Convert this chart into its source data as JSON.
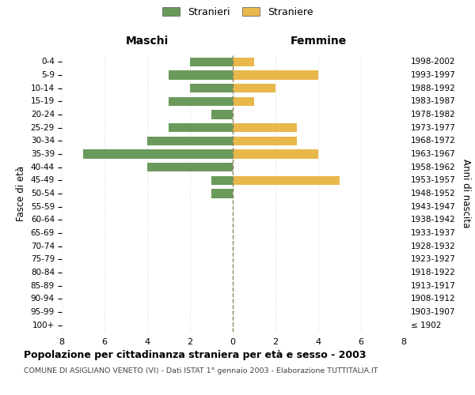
{
  "age_groups": [
    "100+",
    "95-99",
    "90-94",
    "85-89",
    "80-84",
    "75-79",
    "70-74",
    "65-69",
    "60-64",
    "55-59",
    "50-54",
    "45-49",
    "40-44",
    "35-39",
    "30-34",
    "25-29",
    "20-24",
    "15-19",
    "10-14",
    "5-9",
    "0-4"
  ],
  "birth_years": [
    "≤ 1902",
    "1903-1907",
    "1908-1912",
    "1913-1917",
    "1918-1922",
    "1923-1927",
    "1928-1932",
    "1933-1937",
    "1938-1942",
    "1943-1947",
    "1948-1952",
    "1953-1957",
    "1958-1962",
    "1963-1967",
    "1968-1972",
    "1973-1977",
    "1978-1982",
    "1983-1987",
    "1988-1992",
    "1993-1997",
    "1998-2002"
  ],
  "males": [
    0,
    0,
    0,
    0,
    0,
    0,
    0,
    0,
    0,
    0,
    1,
    1,
    4,
    7,
    4,
    3,
    1,
    3,
    2,
    3,
    2
  ],
  "females": [
    0,
    0,
    0,
    0,
    0,
    0,
    0,
    0,
    0,
    0,
    0,
    5,
    0,
    4,
    3,
    3,
    0,
    1,
    2,
    4,
    1
  ],
  "color_male": "#6a9a5b",
  "color_female": "#e8b84b",
  "xlim": 8,
  "title": "Popolazione per cittadinanza straniera per età e sesso - 2003",
  "subtitle": "COMUNE DI ASIGLIANO VENETO (VI) - Dati ISTAT 1° gennaio 2003 - Elaborazione TUTTITALIA.IT",
  "legend_male": "Stranieri",
  "legend_female": "Straniere",
  "xlabel_left": "Maschi",
  "xlabel_right": "Femmine",
  "ylabel_left": "Fasce di età",
  "ylabel_right": "Anni di nascita",
  "background_color": "#ffffff",
  "grid_color": "#d0d0d0"
}
